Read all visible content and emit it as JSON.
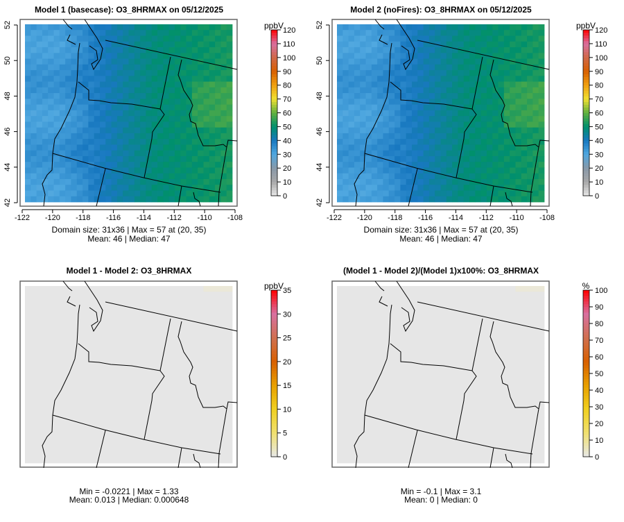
{
  "panels": [
    {
      "title": "Model 1 (basecase): O3_8HRMAX on 05/12/2025",
      "unit": "ppbV",
      "stats_line1": "Domain size: 31x36 | Max = 57 at (20, 35)",
      "stats_line2": "Mean: 46 |  Median: 47",
      "scale_ticks": [
        "0",
        "10",
        "20",
        "30",
        "40",
        "50",
        "60",
        "70",
        "80",
        "90",
        "100",
        "110",
        "120"
      ],
      "palette": "concentration",
      "field": "base"
    },
    {
      "title": "Model 2 (noFires): O3_8HRMAX on 05/12/2025",
      "unit": "ppbV",
      "stats_line1": "Domain size: 31x36 | Max = 57 at (20, 35)",
      "stats_line2": "Mean: 46 |  Median: 47",
      "scale_ticks": [
        "0",
        "10",
        "20",
        "30",
        "40",
        "50",
        "60",
        "70",
        "80",
        "90",
        "100",
        "110",
        "120"
      ],
      "palette": "concentration",
      "field": "base"
    },
    {
      "title": "Model 1 - Model 2: O3_8HRMAX",
      "unit": "ppbV",
      "stats_line1": "Min = -0.0221 | Max = 1.33",
      "stats_line2": "Mean: 0.013 |  Median: 0.000648",
      "scale_ticks": [
        "0",
        "5",
        "10",
        "15",
        "20",
        "25",
        "30",
        "35"
      ],
      "palette": "difference",
      "field": "diff"
    },
    {
      "title": "(Model 1 - Model 2)/(Model 1)x100%: O3_8HRMAX",
      "unit": "%",
      "stats_line1": "Min = -0.1 | Max = 3.1",
      "stats_line2": "Mean: 0 |  Median: 0",
      "scale_ticks": [
        "0",
        "10",
        "20",
        "30",
        "40",
        "50",
        "60",
        "70",
        "80",
        "90",
        "100"
      ],
      "palette": "difference",
      "field": "diff"
    }
  ],
  "axes": {
    "lon_ticks": [
      "-122",
      "-120",
      "-118",
      "-116",
      "-114",
      "-112",
      "-110",
      "-108"
    ],
    "lat_ticks": [
      "42",
      "44",
      "46",
      "48",
      "50",
      "52"
    ]
  },
  "colors": {
    "concentration": [
      "#e8e8e8",
      "#a8a8a8",
      "#8898a8",
      "#50a8e0",
      "#1878c0",
      "#00906c",
      "#60b040",
      "#f0e030",
      "#f0a010",
      "#d86000",
      "#d06848",
      "#d870a0",
      "#ff0000"
    ],
    "difference": [
      "#e8e8e8",
      "#f0e070",
      "#f0d020",
      "#e8a000",
      "#d86000",
      "#d07050",
      "#d870a0",
      "#ff0000"
    ],
    "frame": "#666666"
  }
}
